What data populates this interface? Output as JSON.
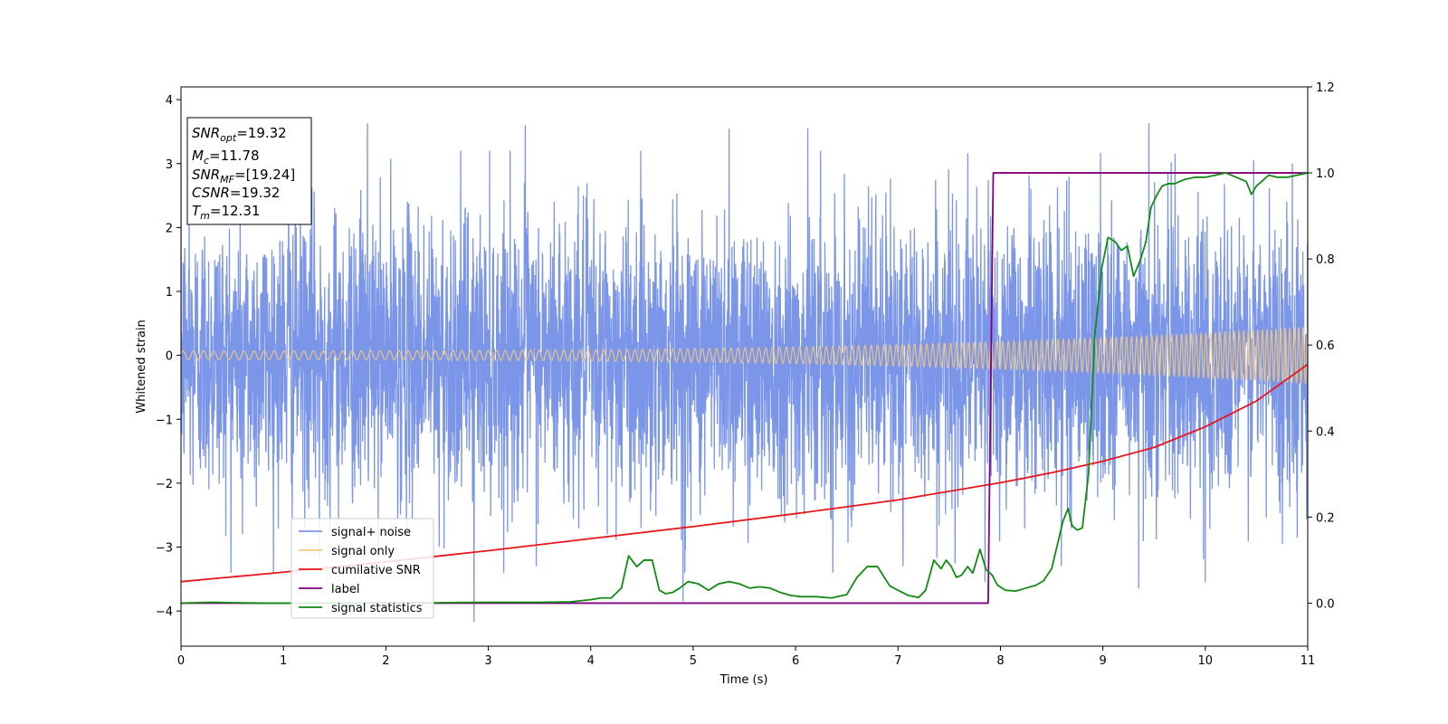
{
  "chart_data": {
    "type": "line",
    "xlabel": "Time (s)",
    "ylabel": "Whitened strain",
    "xlim": [
      0,
      11
    ],
    "ylim_left": [
      -4.55,
      4.2
    ],
    "ylim_right": [
      -0.1,
      1.2
    ],
    "x_ticks": [
      0,
      1,
      2,
      3,
      4,
      5,
      6,
      7,
      8,
      9,
      10,
      11
    ],
    "y_ticks_left": [
      "−4",
      "−3",
      "−2",
      "−1",
      "0",
      "1",
      "2",
      "3",
      "4"
    ],
    "y_tick_values_left": [
      -4,
      -3,
      -2,
      -1,
      0,
      1,
      2,
      3,
      4
    ],
    "y_ticks_right": [
      "0.0",
      "0.2",
      "0.4",
      "0.6",
      "0.8",
      "1.0",
      "1.2"
    ],
    "y_tick_values_right": [
      0.0,
      0.2,
      0.4,
      0.6,
      0.8,
      1.0,
      1.2
    ],
    "grid": false,
    "legend_position": "lower-left",
    "info_box": {
      "lines": [
        {
          "main": "SNR",
          "sub": "opt",
          "rest": "=19.32"
        },
        {
          "main": "M",
          "sub": "c",
          "rest": "=11.78"
        },
        {
          "main": "SNR",
          "sub": "MF",
          "rest": "=[19.24]"
        },
        {
          "main": "CSNR",
          "sub": "",
          "rest": "=19.32"
        },
        {
          "main": "T",
          "sub": "m",
          "rest": "=12.31"
        }
      ]
    },
    "series": [
      {
        "name": "signal+ noise",
        "axis": "left",
        "color": "#7b96e8",
        "kind": "noise",
        "sigma": 1.1,
        "extremes": [
          {
            "x": 0.08,
            "y": 2.3
          },
          {
            "x": 0.6,
            "y": -2.8
          },
          {
            "x": 1.05,
            "y": 3.0
          },
          {
            "x": 1.35,
            "y": -3.2
          },
          {
            "x": 1.82,
            "y": 3.63
          },
          {
            "x": 2.52,
            "y": -3.0
          },
          {
            "x": 2.86,
            "y": -4.17
          },
          {
            "x": 3.36,
            "y": 3.6
          },
          {
            "x": 4.9,
            "y": -3.85
          },
          {
            "x": 5.35,
            "y": 3.55
          },
          {
            "x": 6.12,
            "y": 3.55
          },
          {
            "x": 7.05,
            "y": -3.3
          },
          {
            "x": 7.85,
            "y": -3.55
          },
          {
            "x": 9.35,
            "y": -3.65
          },
          {
            "x": 9.45,
            "y": 3.63
          },
          {
            "x": 10.0,
            "y": -3.55
          },
          {
            "x": 10.85,
            "y": 3.0
          }
        ]
      },
      {
        "name": "signal only",
        "axis": "left",
        "color": "#f5c77a",
        "kind": "chirp",
        "amplitude_start": 0.07,
        "amplitude_end": 0.45,
        "freq_start_hz": 10,
        "freq_end_hz": 23
      },
      {
        "name": "cumilative SNR",
        "axis": "right",
        "color": "#e8161a",
        "x": [
          0,
          1,
          2,
          3,
          4,
          5,
          6,
          7,
          8,
          8.5,
          9,
          9.5,
          10,
          10.5,
          11
        ],
        "y": [
          0.05,
          0.072,
          0.096,
          0.122,
          0.15,
          0.178,
          0.208,
          0.24,
          0.28,
          0.303,
          0.33,
          0.362,
          0.41,
          0.47,
          0.555
        ]
      },
      {
        "name": "label",
        "axis": "right",
        "color": "#800080",
        "x": [
          0,
          7.88,
          7.93,
          11
        ],
        "y": [
          0.0,
          0.0,
          1.0,
          1.0
        ]
      },
      {
        "name": "signal statistics",
        "axis": "right",
        "color": "#138a13",
        "x": [
          0,
          0.3,
          0.8,
          1.5,
          2.0,
          2.5,
          3.0,
          3.5,
          3.8,
          4.0,
          4.1,
          4.2,
          4.3,
          4.37,
          4.45,
          4.52,
          4.6,
          4.67,
          4.73,
          4.8,
          4.87,
          4.95,
          5.05,
          5.15,
          5.25,
          5.35,
          5.45,
          5.55,
          5.65,
          5.75,
          5.85,
          5.95,
          6.05,
          6.2,
          6.35,
          6.5,
          6.6,
          6.7,
          6.8,
          6.88,
          6.92,
          7.0,
          7.1,
          7.2,
          7.27,
          7.35,
          7.42,
          7.47,
          7.52,
          7.57,
          7.62,
          7.68,
          7.73,
          7.8,
          7.86,
          7.92,
          7.97,
          8.05,
          8.15,
          8.25,
          8.35,
          8.42,
          8.5,
          8.56,
          8.61,
          8.66,
          8.7,
          8.75,
          8.8,
          8.86,
          8.92,
          8.99,
          9.05,
          9.12,
          9.18,
          9.24,
          9.3,
          9.37,
          9.42,
          9.47,
          9.53,
          9.58,
          9.64,
          9.7,
          9.8,
          9.9,
          10.0,
          10.1,
          10.2,
          10.3,
          10.4,
          10.45,
          10.5,
          10.55,
          10.62,
          10.7,
          10.8,
          10.9,
          11.0
        ],
        "y": [
          0.0,
          0.002,
          0.0,
          0.0,
          0.001,
          0.001,
          0.002,
          0.002,
          0.003,
          0.008,
          0.012,
          0.012,
          0.035,
          0.11,
          0.085,
          0.1,
          0.1,
          0.03,
          0.022,
          0.025,
          0.035,
          0.05,
          0.045,
          0.03,
          0.045,
          0.05,
          0.045,
          0.035,
          0.038,
          0.035,
          0.025,
          0.018,
          0.015,
          0.015,
          0.012,
          0.02,
          0.06,
          0.085,
          0.085,
          0.055,
          0.04,
          0.03,
          0.018,
          0.013,
          0.03,
          0.1,
          0.08,
          0.1,
          0.085,
          0.06,
          0.065,
          0.085,
          0.07,
          0.125,
          0.078,
          0.065,
          0.042,
          0.03,
          0.028,
          0.035,
          0.042,
          0.052,
          0.08,
          0.14,
          0.19,
          0.22,
          0.18,
          0.17,
          0.175,
          0.3,
          0.62,
          0.78,
          0.85,
          0.84,
          0.82,
          0.83,
          0.76,
          0.8,
          0.84,
          0.92,
          0.95,
          0.97,
          0.975,
          0.975,
          0.985,
          0.99,
          0.99,
          0.995,
          1.0,
          0.99,
          0.98,
          0.95,
          0.97,
          0.98,
          0.995,
          0.99,
          0.99,
          0.995,
          1.0
        ]
      }
    ]
  }
}
